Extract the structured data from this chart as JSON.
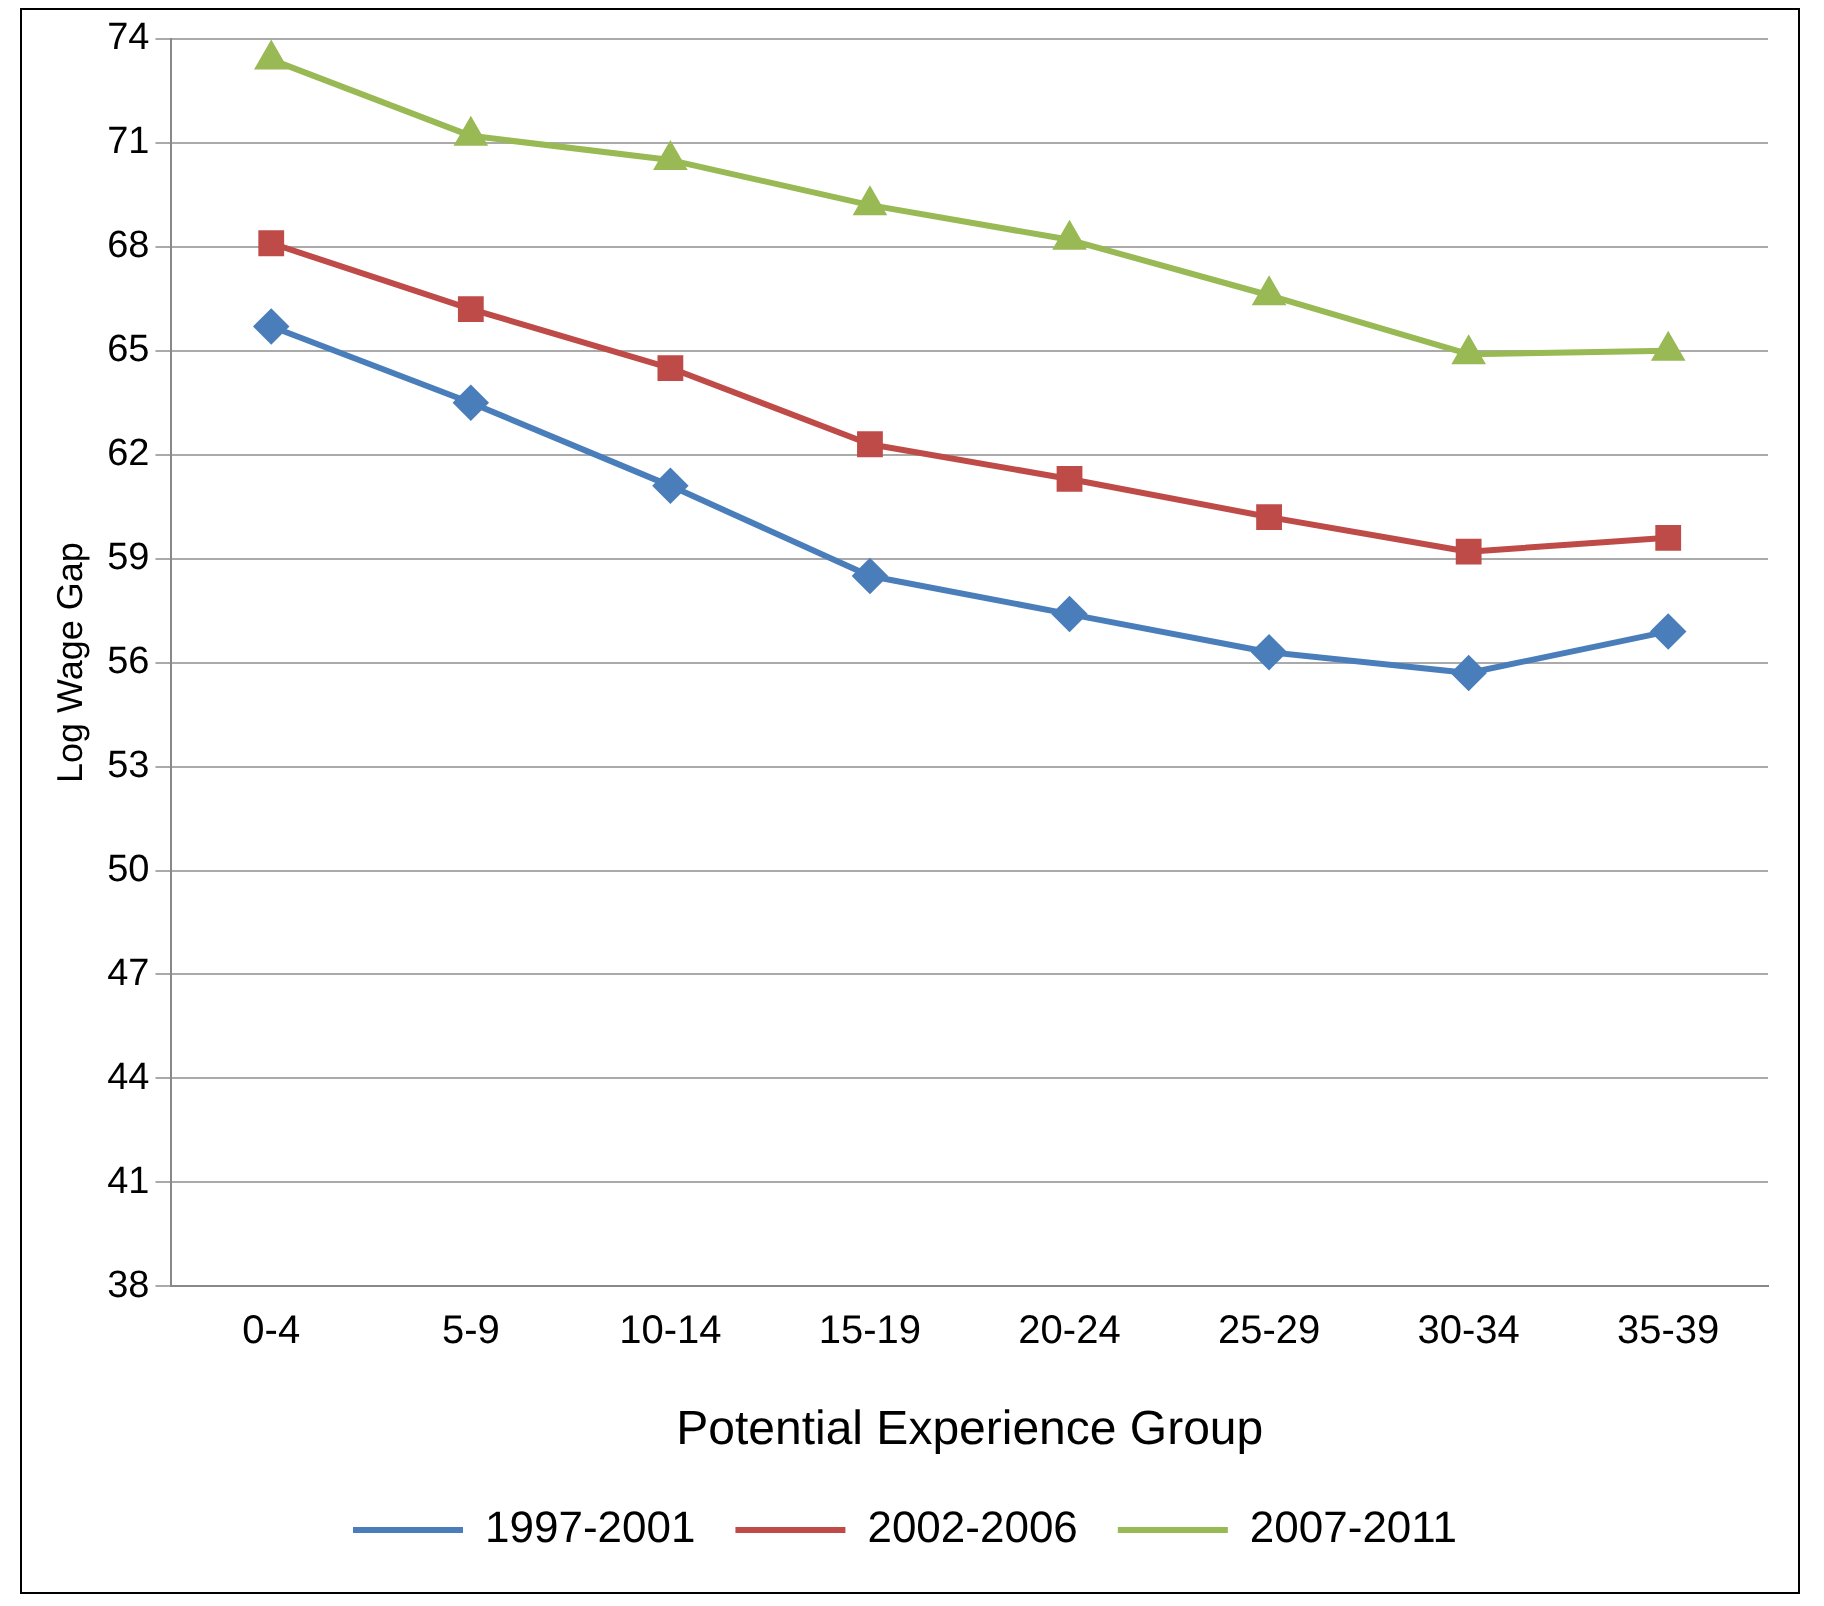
{
  "chart_data": {
    "type": "line",
    "xlabel": "Potential Experience Group",
    "ylabel": "Log Wage Gap",
    "categories": [
      "0-4",
      "5-9",
      "10-14",
      "15-19",
      "20-24",
      "25-29",
      "30-34",
      "35-39"
    ],
    "series": [
      {
        "name": "1997-2001",
        "color": "#4a7ebb",
        "marker": "diamond",
        "values": [
          65.7,
          63.5,
          61.1,
          58.5,
          57.4,
          56.3,
          55.7,
          56.9
        ]
      },
      {
        "name": "2002-2006",
        "color": "#be4b48",
        "marker": "square",
        "values": [
          68.1,
          66.2,
          64.5,
          62.3,
          61.3,
          60.2,
          59.2,
          59.6
        ]
      },
      {
        "name": "2007-2011",
        "color": "#98b954",
        "marker": "triangle",
        "values": [
          73.4,
          71.2,
          70.5,
          69.2,
          68.2,
          66.6,
          64.9,
          65.0
        ]
      }
    ],
    "ylim": [
      38,
      74
    ],
    "yticks": [
      38,
      41,
      44,
      47,
      50,
      53,
      56,
      59,
      62,
      65,
      68,
      71,
      74
    ],
    "grid": "y",
    "legend": "bottom"
  }
}
